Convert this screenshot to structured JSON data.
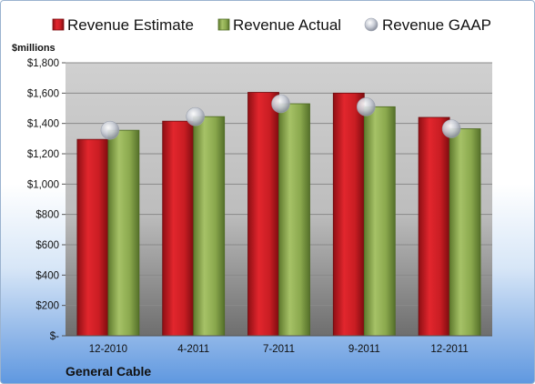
{
  "chart_data": {
    "type": "bar",
    "company": "General Cable",
    "ylabel": "$millions",
    "categories": [
      "12-2010",
      "4-2011",
      "7-2011",
      "9-2011",
      "12-2011"
    ],
    "series": [
      {
        "name": "Revenue Estimate",
        "kind": "bar",
        "color": "#cc1f25",
        "values": [
          1295,
          1415,
          1605,
          1600,
          1440
        ]
      },
      {
        "name": "Revenue Actual",
        "kind": "bar",
        "color": "#8fae52",
        "values": [
          1355,
          1445,
          1530,
          1510,
          1365
        ]
      },
      {
        "name": "Revenue GAAP",
        "kind": "marker",
        "color": "#c8ccd6",
        "values": [
          1355,
          1445,
          1530,
          1510,
          1365
        ]
      }
    ],
    "ylim": [
      0,
      1800
    ],
    "yticks": [
      0,
      200,
      400,
      600,
      800,
      1000,
      1200,
      1400,
      1600,
      1800
    ],
    "ytick_labels": [
      "$-",
      "$200",
      "$400",
      "$600",
      "$800",
      "$1,000",
      "$1,200",
      "$1,400",
      "$1,600",
      "$1,800"
    ],
    "grid": true,
    "legend_position": "top"
  }
}
